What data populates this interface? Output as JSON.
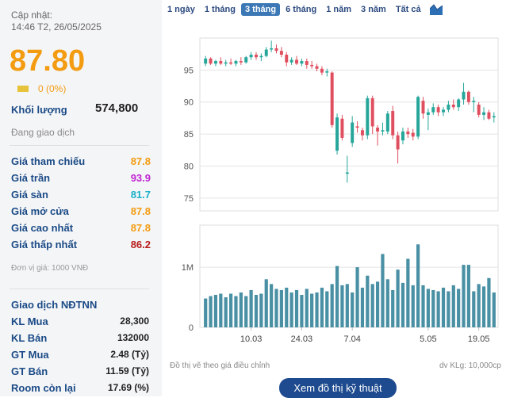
{
  "header": {
    "updated_label": "Cập nhật:",
    "updated_value": "14:46 T2, 26/05/2025"
  },
  "quote": {
    "price": "87.80",
    "change": "0 (0%)",
    "volume_label": "Khối lượng",
    "volume_value": "574,800",
    "status": "Đang giao dịch"
  },
  "prices": [
    {
      "label": "Giá tham chiếu",
      "value": "87.8",
      "color": "#f39c12"
    },
    {
      "label": "Giá trần",
      "value": "93.9",
      "color": "#c026d3"
    },
    {
      "label": "Giá sàn",
      "value": "81.7",
      "color": "#1ab0c8"
    },
    {
      "label": "Giá mở cửa",
      "value": "87.8",
      "color": "#f39c12"
    },
    {
      "label": "Giá cao nhất",
      "value": "87.8",
      "color": "#f39c12"
    },
    {
      "label": "Giá thấp nhất",
      "value": "86.2",
      "color": "#b91c1c"
    }
  ],
  "unit_note": "Đơn vị giá: 1000 VNĐ",
  "foreign": {
    "title": "Giao dịch NĐTNN",
    "rows": [
      {
        "label": "KL Mua",
        "value": "28,300"
      },
      {
        "label": "KL Bán",
        "value": "132000"
      },
      {
        "label": "GT Mua",
        "value": "2.48 (Tỷ)"
      },
      {
        "label": "GT Bán",
        "value": "11.59 (Tỷ)"
      },
      {
        "label": "Room còn lại",
        "value": "17.69 (%)"
      }
    ]
  },
  "tabs": [
    "1 ngày",
    "1 tháng",
    "3 tháng",
    "6 tháng",
    "1 năm",
    "3 năm",
    "Tất cả"
  ],
  "active_tab": 2,
  "footer": {
    "note": "Đồ thị vẽ theo giá điều chỉnh",
    "volume_unit": "dv KLg: 10,000cp",
    "button": "Xem đồ thị kỹ thuật"
  },
  "chart_data": {
    "type": "candlestick",
    "y_ticks": [
      75,
      80,
      85,
      90,
      95
    ],
    "ylim": [
      73,
      100
    ],
    "x_ticks": [
      {
        "label": "10.03",
        "index": 9
      },
      {
        "label": "24.03",
        "index": 19
      },
      {
        "label": "7.04",
        "index": 29
      },
      {
        "label": "5.05",
        "index": 44
      },
      {
        "label": "19.05",
        "index": 54
      }
    ],
    "volume_ticks": [
      {
        "label": "0",
        "value": 0
      },
      {
        "label": "1M",
        "value": 1000000
      }
    ],
    "volume_max": 1700000,
    "up_color": "#26a69a",
    "down_color": "#e04f5f",
    "volume_color": "#4a90a4",
    "candles": [
      {
        "o": 96.0,
        "h": 97.2,
        "l": 95.6,
        "c": 96.8
      },
      {
        "o": 96.8,
        "h": 97.0,
        "l": 95.8,
        "c": 96.0
      },
      {
        "o": 96.0,
        "h": 96.6,
        "l": 95.6,
        "c": 96.4
      },
      {
        "o": 96.4,
        "h": 97.0,
        "l": 95.8,
        "c": 96.0
      },
      {
        "o": 96.0,
        "h": 96.6,
        "l": 95.6,
        "c": 96.2
      },
      {
        "o": 96.2,
        "h": 96.8,
        "l": 95.8,
        "c": 96.0
      },
      {
        "o": 96.0,
        "h": 96.6,
        "l": 95.6,
        "c": 96.4
      },
      {
        "o": 96.4,
        "h": 97.0,
        "l": 95.8,
        "c": 96.2
      },
      {
        "o": 96.2,
        "h": 97.2,
        "l": 96.0,
        "c": 97.0
      },
      {
        "o": 97.0,
        "h": 97.8,
        "l": 96.6,
        "c": 97.4
      },
      {
        "o": 97.4,
        "h": 97.8,
        "l": 96.6,
        "c": 97.0
      },
      {
        "o": 97.0,
        "h": 97.6,
        "l": 96.4,
        "c": 97.2
      },
      {
        "o": 97.2,
        "h": 98.6,
        "l": 97.0,
        "c": 98.2
      },
      {
        "o": 98.2,
        "h": 99.6,
        "l": 97.8,
        "c": 98.4
      },
      {
        "o": 98.4,
        "h": 99.0,
        "l": 97.6,
        "c": 98.0
      },
      {
        "o": 98.0,
        "h": 98.6,
        "l": 97.0,
        "c": 97.4
      },
      {
        "o": 97.4,
        "h": 97.8,
        "l": 95.6,
        "c": 96.2
      },
      {
        "o": 96.2,
        "h": 97.0,
        "l": 95.8,
        "c": 96.6
      },
      {
        "o": 96.6,
        "h": 97.2,
        "l": 95.8,
        "c": 96.0
      },
      {
        "o": 96.0,
        "h": 96.8,
        "l": 95.6,
        "c": 96.4
      },
      {
        "o": 96.4,
        "h": 96.8,
        "l": 95.2,
        "c": 95.8
      },
      {
        "o": 95.8,
        "h": 96.4,
        "l": 95.2,
        "c": 95.6
      },
      {
        "o": 95.6,
        "h": 96.0,
        "l": 94.8,
        "c": 95.2
      },
      {
        "o": 95.2,
        "h": 95.6,
        "l": 94.2,
        "c": 94.6
      },
      {
        "o": 94.6,
        "h": 95.2,
        "l": 94.0,
        "c": 94.8
      },
      {
        "o": 94.6,
        "h": 94.8,
        "l": 86.0,
        "c": 86.4
      },
      {
        "o": 82.4,
        "h": 88.2,
        "l": 81.8,
        "c": 87.6
      },
      {
        "o": 87.4,
        "h": 88.0,
        "l": 84.0,
        "c": 84.4
      },
      {
        "o": 78.8,
        "h": 81.6,
        "l": 77.4,
        "c": 79.0
      },
      {
        "o": 83.6,
        "h": 87.8,
        "l": 83.0,
        "c": 86.8
      },
      {
        "o": 86.2,
        "h": 87.0,
        "l": 85.2,
        "c": 86.0
      },
      {
        "o": 85.6,
        "h": 86.0,
        "l": 84.0,
        "c": 84.8
      },
      {
        "o": 84.8,
        "h": 91.0,
        "l": 84.2,
        "c": 90.6
      },
      {
        "o": 90.6,
        "h": 91.0,
        "l": 85.0,
        "c": 86.2
      },
      {
        "o": 86.0,
        "h": 86.4,
        "l": 83.2,
        "c": 85.4
      },
      {
        "o": 85.4,
        "h": 86.8,
        "l": 84.8,
        "c": 85.6
      },
      {
        "o": 85.4,
        "h": 88.6,
        "l": 85.0,
        "c": 88.2
      },
      {
        "o": 88.6,
        "h": 89.4,
        "l": 84.2,
        "c": 84.8
      },
      {
        "o": 84.8,
        "h": 85.4,
        "l": 80.4,
        "c": 82.6
      },
      {
        "o": 84.0,
        "h": 86.0,
        "l": 83.4,
        "c": 85.4
      },
      {
        "o": 85.4,
        "h": 86.0,
        "l": 84.4,
        "c": 85.0
      },
      {
        "o": 85.2,
        "h": 85.8,
        "l": 84.0,
        "c": 84.6
      },
      {
        "o": 84.6,
        "h": 91.0,
        "l": 84.2,
        "c": 90.8
      },
      {
        "o": 90.2,
        "h": 90.8,
        "l": 87.4,
        "c": 88.2
      },
      {
        "o": 88.0,
        "h": 89.0,
        "l": 85.6,
        "c": 88.4
      },
      {
        "o": 88.4,
        "h": 89.8,
        "l": 88.0,
        "c": 89.2
      },
      {
        "o": 89.2,
        "h": 89.6,
        "l": 87.8,
        "c": 88.4
      },
      {
        "o": 88.4,
        "h": 89.2,
        "l": 87.8,
        "c": 88.8
      },
      {
        "o": 88.8,
        "h": 90.2,
        "l": 88.4,
        "c": 89.6
      },
      {
        "o": 89.6,
        "h": 90.4,
        "l": 88.8,
        "c": 89.2
      },
      {
        "o": 89.2,
        "h": 90.6,
        "l": 88.6,
        "c": 90.4
      },
      {
        "o": 90.4,
        "h": 93.0,
        "l": 89.6,
        "c": 91.6
      },
      {
        "o": 91.6,
        "h": 91.8,
        "l": 89.6,
        "c": 90.0
      },
      {
        "o": 90.0,
        "h": 90.8,
        "l": 88.4,
        "c": 90.2
      },
      {
        "o": 89.6,
        "h": 90.0,
        "l": 87.6,
        "c": 88.0
      },
      {
        "o": 88.0,
        "h": 89.2,
        "l": 87.2,
        "c": 88.4
      },
      {
        "o": 88.4,
        "h": 88.8,
        "l": 87.2,
        "c": 87.4
      },
      {
        "o": 87.6,
        "h": 88.4,
        "l": 86.8,
        "c": 87.8
      }
    ],
    "volumes": [
      480000,
      520000,
      540000,
      560000,
      500000,
      560000,
      520000,
      580000,
      520000,
      620000,
      540000,
      560000,
      800000,
      720000,
      640000,
      620000,
      660000,
      580000,
      620000,
      540000,
      640000,
      560000,
      580000,
      660000,
      600000,
      720000,
      1020000,
      700000,
      720000,
      580000,
      1000000,
      660000,
      860000,
      720000,
      760000,
      1220000,
      800000,
      620000,
      960000,
      740000,
      1140000,
      700000,
      1380000,
      700000,
      640000,
      620000,
      600000,
      660000,
      600000,
      700000,
      640000,
      1040000,
      1040000,
      600000,
      720000,
      680000,
      820000,
      580000
    ]
  }
}
